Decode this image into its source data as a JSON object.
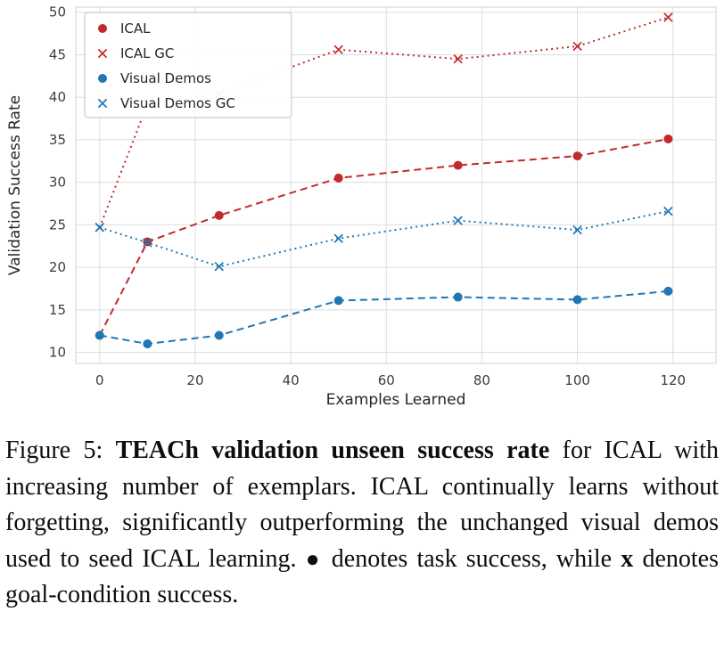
{
  "chart_data": {
    "type": "line",
    "title": "",
    "xlabel": "Examples Learned",
    "ylabel": "Validation Success Rate",
    "x_ticks": [
      0,
      20,
      40,
      60,
      80,
      100,
      120
    ],
    "y_ticks": [
      10,
      15,
      20,
      25,
      30,
      35,
      40,
      45,
      50
    ],
    "xlim": [
      -5,
      129
    ],
    "ylim": [
      8.7,
      50.6
    ],
    "grid": true,
    "grid_color": "#dcdcdc",
    "legend_position": "upper left",
    "series": [
      {
        "name": "ICAL",
        "color": "#c32b2b",
        "marker": "circle",
        "linestyle": "dashed",
        "x": [
          0,
          10,
          25,
          50,
          75,
          100,
          119
        ],
        "y": [
          12.0,
          23.0,
          26.1,
          30.5,
          32.0,
          33.1,
          35.1
        ]
      },
      {
        "name": "ICAL GC",
        "color": "#c32b2b",
        "marker": "x",
        "linestyle": "dotted",
        "x": [
          0,
          10,
          25,
          50,
          75,
          100,
          119
        ],
        "y": [
          24.7,
          39.2,
          40.4,
          45.6,
          44.5,
          46.0,
          49.4
        ]
      },
      {
        "name": "Visual Demos",
        "color": "#1f77b4",
        "marker": "circle",
        "linestyle": "dashed",
        "x": [
          0,
          10,
          25,
          50,
          75,
          100,
          119
        ],
        "y": [
          12.0,
          11.0,
          12.0,
          16.1,
          16.5,
          16.2,
          17.2
        ]
      },
      {
        "name": "Visual Demos GC",
        "color": "#1f77b4",
        "marker": "x",
        "linestyle": "dotted",
        "x": [
          0,
          10,
          25,
          50,
          75,
          100,
          119
        ],
        "y": [
          24.7,
          22.9,
          20.1,
          23.4,
          25.5,
          24.4,
          26.6
        ]
      }
    ]
  },
  "caption": {
    "prefix": "Figure 5:  ",
    "bold_title": "TEACh validation unseen success rate",
    "body1": " for ICAL with increasing number of exemplars. ICAL continually learns without forgetting, significantly outperforming the unchanged visual demos used to seed ICAL learning. ",
    "dot_symbol": "●",
    "body2": " denotes task success, while ",
    "x_symbol": "x",
    "body3": " denotes goal-condition success."
  }
}
